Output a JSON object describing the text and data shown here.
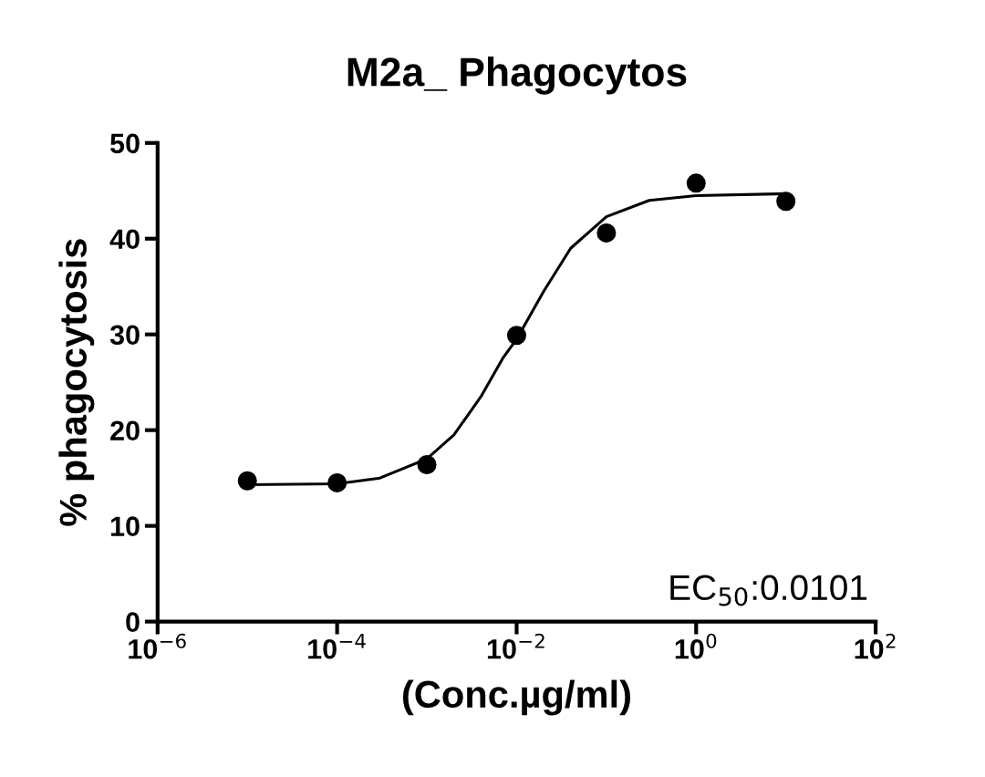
{
  "chart_data": {
    "type": "scatter",
    "title": "M2a_ Phagocytos",
    "xlabel": "(Conc.µg/ml)",
    "ylabel": "% phagocytosis",
    "log": "x",
    "marker": "circle",
    "grid": false,
    "xlim": [
      1e-06,
      100
    ],
    "xticks": [
      {
        "value": 1e-06,
        "label": "10$^{−6}$"
      },
      {
        "value": 0.0001,
        "label": "10$^{−4}$"
      },
      {
        "value": 0.01,
        "label": "10$^{−2}$"
      },
      {
        "value": 1,
        "label": "10$^{0}$"
      },
      {
        "value": 100,
        "label": "10$^{2}$"
      }
    ],
    "ylim": [
      0,
      50
    ],
    "yticks": [
      0,
      10,
      20,
      30,
      40,
      50
    ],
    "series": [
      {
        "color": "#000000",
        "x": [
          1e-05,
          0.0001,
          0.001,
          0.01,
          0.1,
          1,
          10
        ],
        "values": [
          14.7,
          14.5,
          16.4,
          29.9,
          40.6,
          45.8,
          43.9
        ]
      },
      {
        "type": "line",
        "color": "#000000",
        "marker": "none",
        "x": [
          1e-05,
          0.0001,
          0.0003,
          0.001,
          0.002,
          0.004,
          0.007,
          0.01,
          0.02,
          0.04,
          0.1,
          0.3,
          1,
          10
        ],
        "values": [
          14.3,
          14.4,
          15.0,
          17.0,
          19.5,
          23.5,
          27.5,
          29.5,
          34.5,
          39.0,
          42.3,
          44.0,
          44.5,
          44.7
        ]
      }
    ],
    "annotations": [
      "EC$_{50}$:0.0101"
    ]
  }
}
